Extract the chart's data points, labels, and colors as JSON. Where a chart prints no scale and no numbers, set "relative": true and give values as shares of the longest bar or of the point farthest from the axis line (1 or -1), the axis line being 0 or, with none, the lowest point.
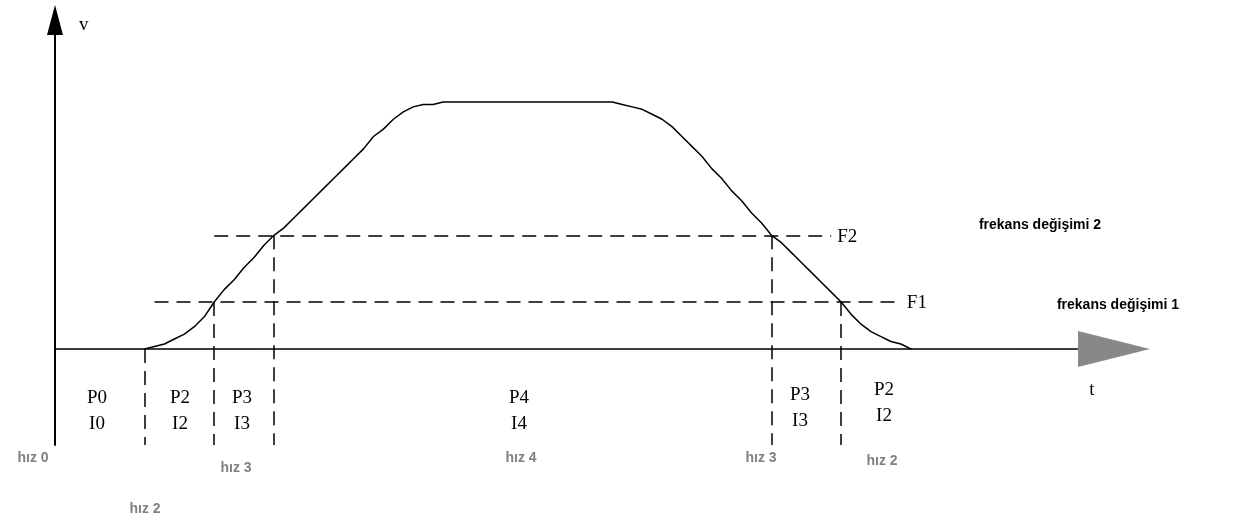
{
  "chart_data": {
    "type": "line",
    "xlabel": "t",
    "ylabel": "v",
    "relative": true,
    "marker": "none",
    "line_style": "solid",
    "categories": [
      null,
      null,
      null,
      null,
      null,
      null,
      null,
      null,
      null,
      null,
      null,
      null,
      null,
      null,
      null,
      null,
      null,
      null,
      null,
      null,
      null,
      null,
      null,
      null,
      null,
      null,
      null,
      null,
      null,
      null,
      null,
      null,
      null,
      null,
      null,
      null,
      null,
      null,
      null,
      null,
      null,
      null,
      null,
      null,
      null,
      null,
      null,
      null,
      null,
      null,
      null,
      null,
      null,
      null,
      null,
      null,
      null,
      null,
      null,
      null,
      null,
      null,
      null,
      null,
      null,
      null,
      null,
      null,
      null,
      null,
      null,
      null,
      null,
      null,
      null,
      null,
      null,
      null,
      null,
      null,
      null,
      null,
      null,
      null,
      null,
      null,
      null,
      null,
      null,
      null,
      null,
      null,
      null,
      null,
      null,
      null,
      null,
      null,
      null,
      null,
      null,
      null,
      null,
      null
    ],
    "series": [
      {
        "color": "#000000",
        "values": [
          null,
          null,
          null,
          null,
          null,
          null,
          null,
          null,
          null,
          0,
          0.01,
          0.02,
          0.04,
          0.06,
          0.09,
          0.13,
          0.19,
          0.24,
          0.28,
          0.33,
          0.37,
          0.42,
          0.46,
          0.49,
          0.53,
          0.57,
          0.61,
          0.65,
          0.69,
          0.73,
          0.77,
          0.81,
          0.86,
          0.89,
          0.93,
          0.96,
          0.98,
          0.99,
          0.99,
          1,
          1,
          1,
          1,
          1,
          1,
          1,
          1,
          1,
          1,
          1,
          1,
          1,
          1,
          1,
          1,
          1,
          1,
          0.99,
          0.98,
          0.97,
          0.95,
          0.93,
          0.9,
          0.86,
          0.82,
          0.78,
          0.73,
          0.69,
          0.64,
          0.6,
          0.55,
          0.51,
          0.46,
          0.43,
          0.39,
          0.35,
          0.31,
          0.27,
          0.23,
          0.19,
          0.14,
          0.1,
          0.07,
          0.05,
          0.03,
          0.02,
          0,
          null,
          null,
          null,
          null,
          null,
          null,
          null,
          null,
          null,
          null,
          null,
          null,
          null,
          null,
          null,
          null,
          null
        ]
      }
    ],
    "ref_lines": [
      {
        "axis": "y",
        "value": 0.19,
        "label": "F1",
        "color": "#000000",
        "line_style": "dashed"
      },
      {
        "axis": "y",
        "value": 0.46,
        "label": "F2",
        "color": "#000000",
        "line_style": "dashed"
      }
    ],
    "annotations": [
      "frekans değişimi 2",
      "frekans değişimi 1",
      "P0\nI0",
      "P2\nI2",
      "P3\nI3",
      "P4\nI4",
      "P3\nI3",
      "P2\nI2",
      "hız 0",
      "hız 2",
      "hız 3",
      "hız 4",
      "hız 3",
      "hız 2"
    ]
  }
}
